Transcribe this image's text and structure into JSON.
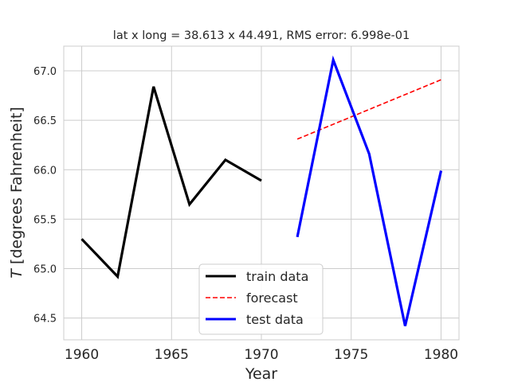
{
  "chart_data": {
    "type": "line",
    "title": "lat x long = 38.613 x 44.491, RMS error: 6.998e-01",
    "xlabel": "Year",
    "ylabel_prefix": "T",
    "ylabel_suffix": " [degrees Fahrenheit]",
    "xlim": [
      1959.0,
      1981.0
    ],
    "ylim": [
      64.28,
      67.25
    ],
    "xticks": [
      1960,
      1965,
      1970,
      1975,
      1980
    ],
    "yticks": [
      64.5,
      65.0,
      65.5,
      66.0,
      66.5,
      67.0
    ],
    "ytick_labels": [
      "64.5",
      "65.0",
      "65.5",
      "66.0",
      "66.5",
      "67.0"
    ],
    "grid": true,
    "legend_placement": "lower center",
    "series": [
      {
        "name": "train data",
        "color": "#000000",
        "style": "solid",
        "x": [
          1960,
          1962,
          1964,
          1966,
          1968,
          1970
        ],
        "y": [
          65.3,
          64.92,
          66.84,
          65.65,
          66.1,
          65.89
        ]
      },
      {
        "name": "forecast",
        "color": "#ff0000",
        "style": "dashed",
        "x": [
          1972,
          1980
        ],
        "y": [
          66.31,
          66.91
        ]
      },
      {
        "name": "test data",
        "color": "#0000ff",
        "style": "solid",
        "x": [
          1972,
          1974,
          1976,
          1978,
          1980
        ],
        "y": [
          65.32,
          67.11,
          66.16,
          64.42,
          65.99
        ]
      }
    ]
  }
}
